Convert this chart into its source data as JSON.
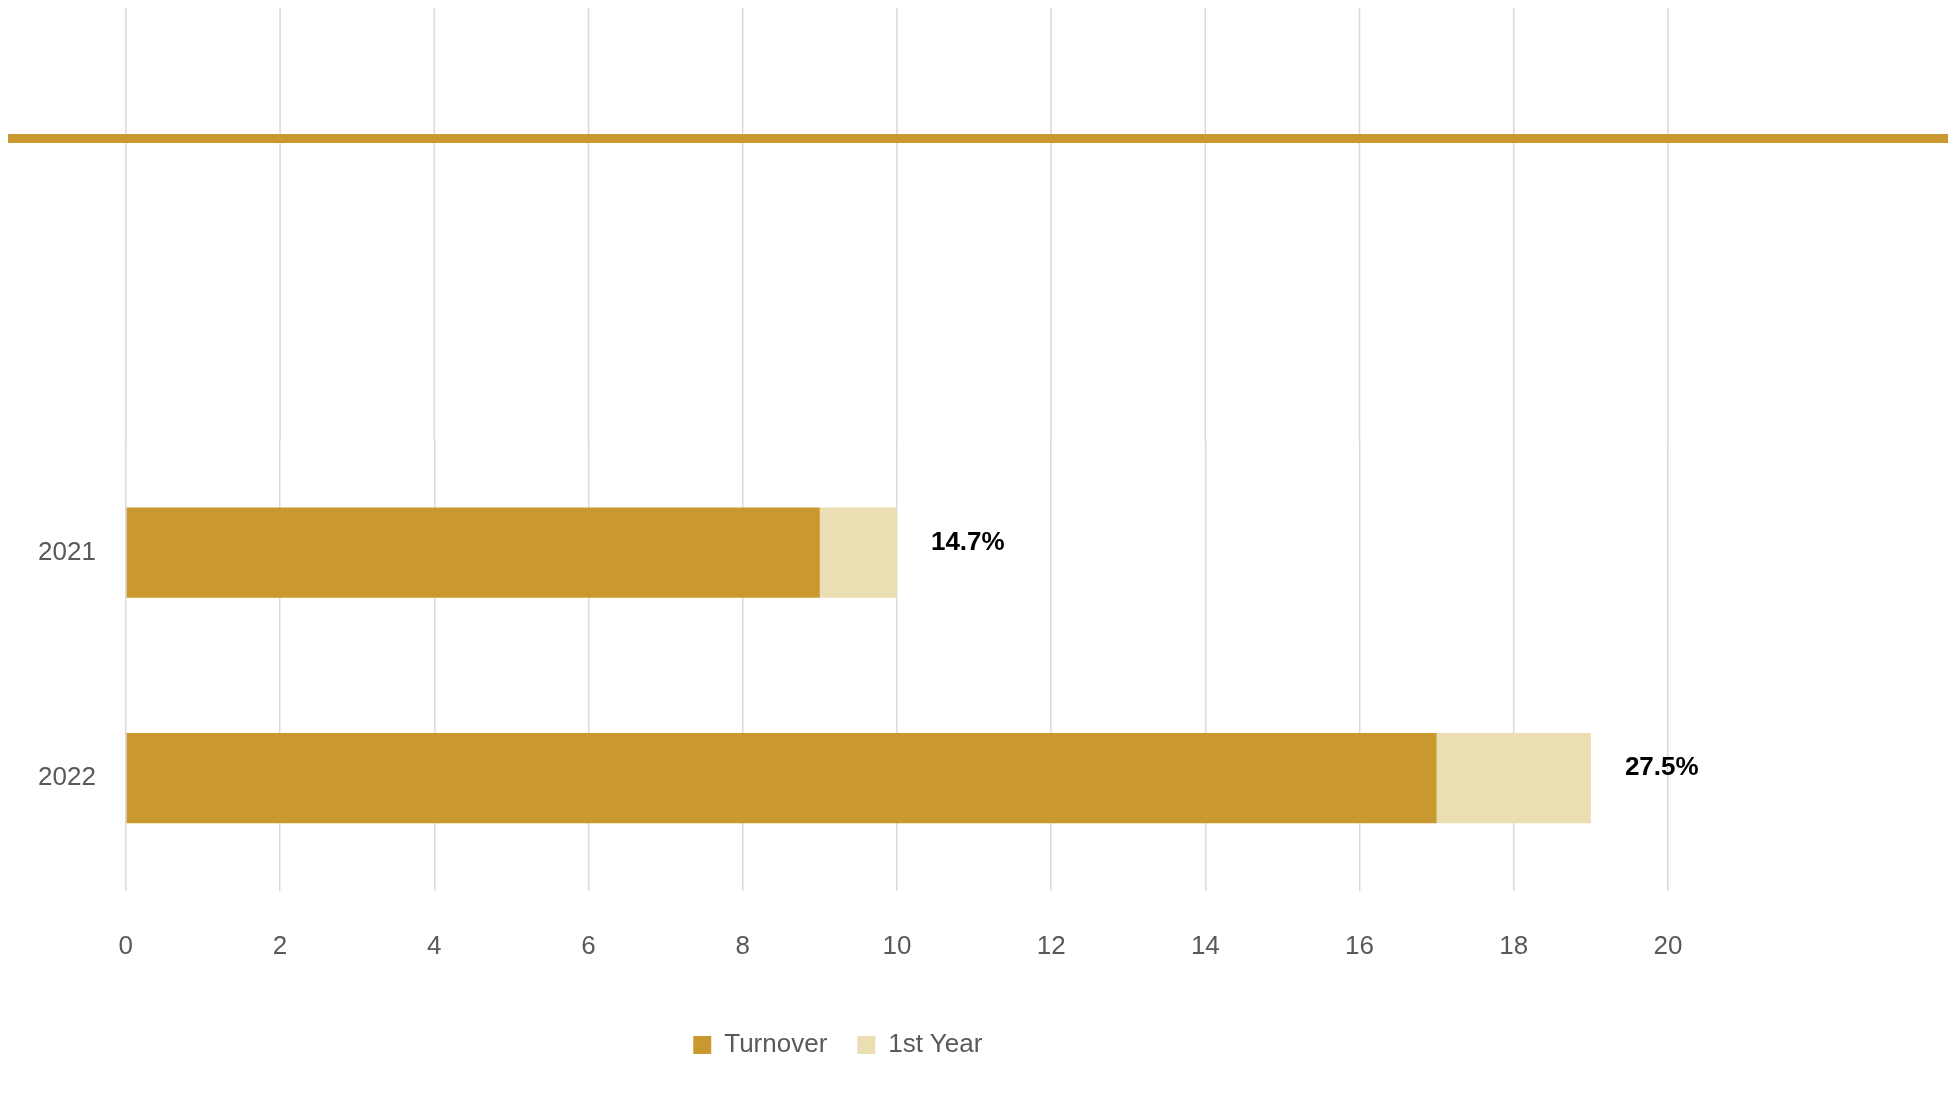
{
  "chart_data": {
    "type": "bar",
    "orientation": "horizontal",
    "stacked": true,
    "categories": [
      "2021",
      "2022"
    ],
    "series": [
      {
        "name": "Turnover",
        "color": "#c9982f",
        "values": [
          9,
          17
        ]
      },
      {
        "name": "1st Year",
        "color": "#eadeb2",
        "values": [
          1,
          2
        ]
      }
    ],
    "annotations": [
      {
        "text": "14.7%",
        "x": 10,
        "y": "2021"
      },
      {
        "text": "27.5%",
        "x": 19,
        "y": "2022"
      }
    ],
    "xlim": [
      0,
      20
    ],
    "xticks": [
      0,
      2,
      4,
      6,
      8,
      10,
      12,
      14,
      16,
      18,
      20
    ],
    "grid": "x",
    "legend": "bottom"
  }
}
